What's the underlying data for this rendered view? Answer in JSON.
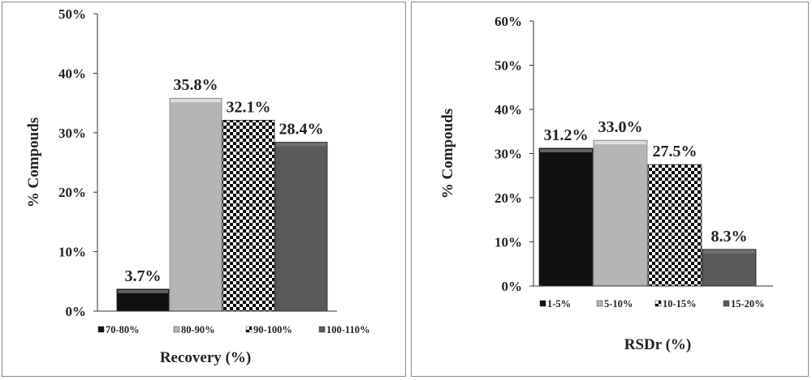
{
  "colors": {
    "series": [
      "#111111",
      "#b5b5b5",
      "checker",
      "#5a5a5a"
    ]
  },
  "chart_data": [
    {
      "type": "bar",
      "categories": [
        "70-80%",
        "80-90%",
        "90-100%",
        "100-110%"
      ],
      "values": [
        3.7,
        35.8,
        32.1,
        28.4
      ],
      "data_labels": [
        "3.7%",
        "35.8%",
        "32.1%",
        "28.4%"
      ],
      "legend": [
        "70-80%",
        "80-90%",
        "90-100%",
        "100-110%"
      ],
      "xlabel": "Recovery (%)",
      "ylabel": "% Compouds",
      "ylim": [
        0,
        50
      ],
      "yticks": [
        0,
        10,
        20,
        30,
        40,
        50
      ],
      "ytick_labels": [
        "0%",
        "10%",
        "20%",
        "30%",
        "40%",
        "50%"
      ],
      "legend_position": "bottom",
      "grid": false
    },
    {
      "type": "bar",
      "categories": [
        "1-5%",
        "5-10%",
        "10-15%",
        "15-20%"
      ],
      "values": [
        31.2,
        33.0,
        27.5,
        8.3
      ],
      "data_labels": [
        "31.2%",
        "33.0%",
        "27.5%",
        "8.3%"
      ],
      "legend": [
        "1-5%",
        "5-10%",
        "10-15%",
        "15-20%"
      ],
      "xlabel": "RSDr (%)",
      "ylabel": "% Compouds",
      "ylim": [
        0,
        60
      ],
      "yticks": [
        0,
        10,
        20,
        30,
        40,
        50,
        60
      ],
      "ytick_labels": [
        "0%",
        "10%",
        "20%",
        "30%",
        "40%",
        "50%",
        "60%"
      ],
      "legend_position": "bottom",
      "grid": false
    }
  ]
}
